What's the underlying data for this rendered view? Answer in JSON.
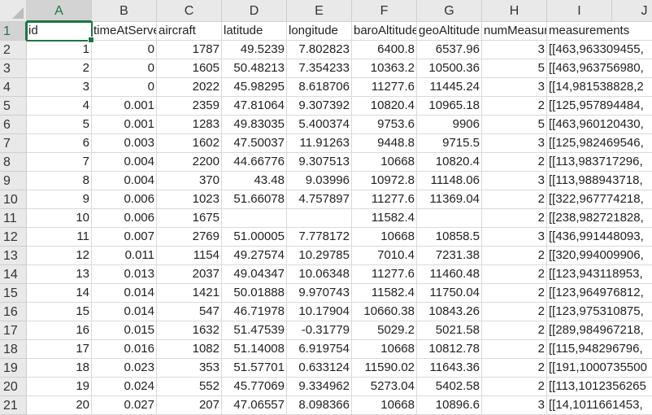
{
  "sheet": {
    "selected_cell": "A1",
    "accent_color": "#217346",
    "columns": [
      "A",
      "B",
      "C",
      "D",
      "E",
      "F",
      "G",
      "H",
      "I",
      "J"
    ],
    "headers": [
      "id",
      "timeAtServer",
      "aircraft",
      "latitude",
      "longitude",
      "baroAltitude",
      "geoAltitude",
      "numMeasurements",
      "measurements"
    ],
    "rows": [
      [
        "1",
        "0",
        "1787",
        "49.5239",
        "7.802823",
        "6400.8",
        "6537.96",
        "3",
        "[[463,963309455,"
      ],
      [
        "2",
        "0",
        "1605",
        "50.48213",
        "7.354233",
        "10363.2",
        "10500.36",
        "5",
        "[[463,963756980,"
      ],
      [
        "3",
        "0",
        "2022",
        "45.98295",
        "8.618706",
        "11277.6",
        "11445.24",
        "3",
        "[[14,981538828,2"
      ],
      [
        "4",
        "0.001",
        "2359",
        "47.81064",
        "9.307392",
        "10820.4",
        "10965.18",
        "2",
        "[[125,957894484,"
      ],
      [
        "5",
        "0.001",
        "1283",
        "49.83035",
        "5.400374",
        "9753.6",
        "9906",
        "5",
        "[[463,960120430,"
      ],
      [
        "6",
        "0.003",
        "1602",
        "47.50037",
        "11.91263",
        "9448.8",
        "9715.5",
        "3",
        "[[125,982469546,"
      ],
      [
        "7",
        "0.004",
        "2200",
        "44.66776",
        "9.307513",
        "10668",
        "10820.4",
        "2",
        "[[113,983717296,"
      ],
      [
        "8",
        "0.004",
        "370",
        "43.48",
        "9.03996",
        "10972.8",
        "11148.06",
        "3",
        "[[113,988943718,"
      ],
      [
        "9",
        "0.006",
        "1023",
        "51.66078",
        "4.757897",
        "11277.6",
        "11369.04",
        "2",
        "[[322,967774218,"
      ],
      [
        "10",
        "0.006",
        "1675",
        "",
        "",
        "11582.4",
        "",
        "2",
        "[[238,982721828,"
      ],
      [
        "11",
        "0.007",
        "2769",
        "51.00005",
        "7.778172",
        "10668",
        "10858.5",
        "3",
        "[[436,991448093,"
      ],
      [
        "12",
        "0.011",
        "1154",
        "49.27574",
        "10.29785",
        "7010.4",
        "7231.38",
        "2",
        "[[320,994009906,"
      ],
      [
        "13",
        "0.013",
        "2037",
        "49.04347",
        "10.06348",
        "11277.6",
        "11460.48",
        "2",
        "[[123,943118953,"
      ],
      [
        "14",
        "0.014",
        "1421",
        "50.01888",
        "9.970743",
        "11582.4",
        "11750.04",
        "2",
        "[[123,964976812,"
      ],
      [
        "15",
        "0.014",
        "547",
        "46.71978",
        "10.17904",
        "10660.38",
        "10843.26",
        "2",
        "[[123,975310875,"
      ],
      [
        "16",
        "0.015",
        "1632",
        "51.47539",
        "-0.31779",
        "5029.2",
        "5021.58",
        "2",
        "[[289,984967218,"
      ],
      [
        "17",
        "0.016",
        "1082",
        "51.14008",
        "6.919754",
        "10668",
        "10812.78",
        "2",
        "[[115,948296796,"
      ],
      [
        "18",
        "0.023",
        "353",
        "51.57701",
        "0.633124",
        "11590.02",
        "11643.36",
        "2",
        "[[191,1000735500"
      ],
      [
        "19",
        "0.024",
        "552",
        "45.77069",
        "9.334962",
        "5273.04",
        "5402.58",
        "2",
        "[[113,1012356265"
      ],
      [
        "20",
        "0.027",
        "207",
        "47.06557",
        "8.098366",
        "10668",
        "10896.6",
        "3",
        "[[14,1011661453,"
      ]
    ]
  }
}
